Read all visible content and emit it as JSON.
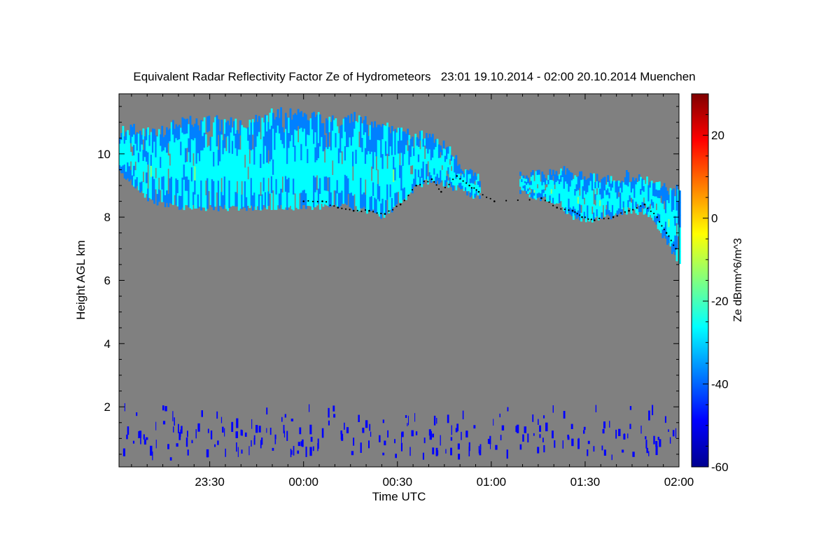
{
  "chart_data": {
    "type": "heatmap",
    "title": "Equivalent Radar Reflectivity Factor Ze of Hydrometeors   23:01 19.10.2014 - 02:00 20.10.2014 Muenchen",
    "xlabel": "Time UTC",
    "ylabel": "Height AGL km",
    "colorbar_label": "Ze dBmm^6/m^3",
    "x_ticks": [
      "23:30",
      "00:00",
      "00:30",
      "01:00",
      "01:30",
      "02:00"
    ],
    "x_tick_minutes": [
      29,
      59,
      89,
      119,
      149,
      179
    ],
    "x_range_minutes": [
      0,
      179
    ],
    "y_ticks": [
      2,
      4,
      6,
      8,
      10
    ],
    "ylim": [
      0.1,
      11.9
    ],
    "colorbar_ticks": [
      20,
      0,
      -20,
      -40,
      -60
    ],
    "colorbar_range": [
      -60,
      30
    ],
    "background_color": "#808080",
    "colormap": [
      "#00008f",
      "#0000ff",
      "#0080ff",
      "#00ffff",
      "#80ff80",
      "#ffff00",
      "#ff8000",
      "#ff0000",
      "#800000"
    ],
    "cloud_layers": [
      {
        "name": "upper",
        "top_km": [
          [
            0,
            10.7
          ],
          [
            5,
            10.8
          ],
          [
            10,
            10.6
          ],
          [
            20,
            11.0
          ],
          [
            30,
            11.1
          ],
          [
            40,
            10.9
          ],
          [
            50,
            11.3
          ],
          [
            60,
            11.2
          ],
          [
            70,
            11.0
          ],
          [
            75,
            11.2
          ],
          [
            85,
            10.8
          ],
          [
            95,
            10.6
          ],
          [
            100,
            10.5
          ],
          [
            105,
            10.2
          ],
          [
            108,
            9.8
          ],
          [
            110,
            9.5
          ],
          [
            115,
            9.3
          ]
        ],
        "base_km": [
          [
            0,
            9.4
          ],
          [
            5,
            9.0
          ],
          [
            10,
            8.5
          ],
          [
            20,
            8.3
          ],
          [
            30,
            8.3
          ],
          [
            40,
            8.3
          ],
          [
            50,
            8.3
          ],
          [
            60,
            8.3
          ],
          [
            70,
            8.4
          ],
          [
            80,
            8.2
          ],
          [
            85,
            8.0
          ],
          [
            90,
            8.5
          ],
          [
            95,
            9.0
          ],
          [
            100,
            9.2
          ],
          [
            105,
            9.0
          ],
          [
            110,
            8.8
          ],
          [
            115,
            8.6
          ]
        ]
      },
      {
        "name": "lower-right",
        "top_km": [
          [
            128,
            9.3
          ],
          [
            135,
            9.3
          ],
          [
            140,
            9.5
          ],
          [
            145,
            9.3
          ],
          [
            155,
            9.2
          ],
          [
            163,
            9.3
          ],
          [
            170,
            9.1
          ],
          [
            175,
            8.9
          ],
          [
            179,
            8.8
          ]
        ],
        "base_km": [
          [
            128,
            8.8
          ],
          [
            135,
            8.6
          ],
          [
            140,
            8.4
          ],
          [
            145,
            8.0
          ],
          [
            150,
            7.9
          ],
          [
            160,
            8.1
          ],
          [
            165,
            8.2
          ],
          [
            170,
            8.0
          ],
          [
            175,
            7.2
          ],
          [
            179,
            6.5
          ]
        ]
      }
    ],
    "cloud_base_points_km": [
      [
        59,
        8.5
      ],
      [
        65,
        8.5
      ],
      [
        70,
        8.3
      ],
      [
        75,
        8.2
      ],
      [
        80,
        8.2
      ],
      [
        85,
        8.1
      ],
      [
        90,
        8.4
      ],
      [
        95,
        9.0
      ],
      [
        100,
        9.2
      ],
      [
        103,
        8.8
      ],
      [
        108,
        9.3
      ],
      [
        112,
        9.0
      ],
      [
        115,
        8.8
      ],
      [
        120,
        8.5
      ],
      [
        135,
        8.6
      ],
      [
        140,
        8.3
      ],
      [
        145,
        8.2
      ],
      [
        148,
        8.0
      ],
      [
        152,
        7.9
      ],
      [
        158,
        8.0
      ],
      [
        163,
        8.2
      ],
      [
        168,
        8.4
      ],
      [
        172,
        8.0
      ],
      [
        175,
        7.5
      ],
      [
        178,
        7.0
      ]
    ],
    "low_echo_band_km": [
      0.1,
      1.9
    ],
    "low_echo_dbz": -50
  }
}
